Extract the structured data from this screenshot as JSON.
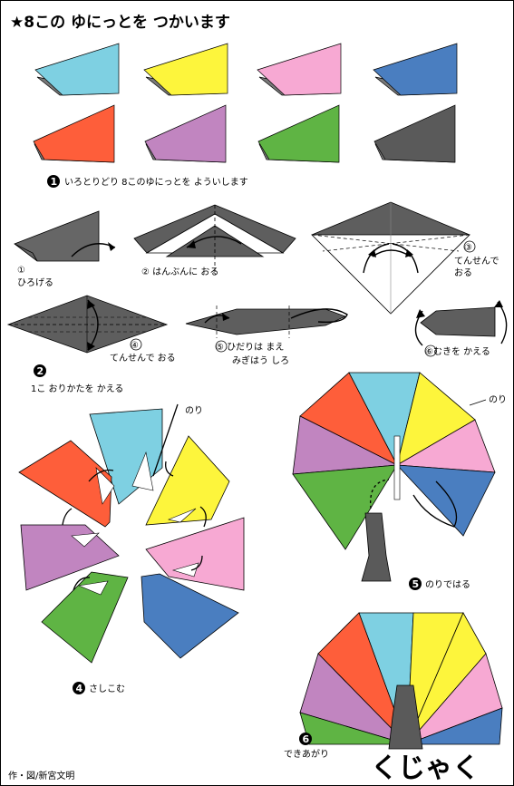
{
  "title": "★8この ゆにっとを つかいます",
  "colors": {
    "cyan": "#7ed0e2",
    "yellow": "#fdf53c",
    "pink": "#f7a9d3",
    "blue": "#4a7ec0",
    "red": "#fe5e3a",
    "purple": "#c185c0",
    "green": "#5fb444",
    "gray": "#5a5a5a"
  },
  "steps": {
    "s1": {
      "no": "1",
      "text": "いろとりどり 8このゆにっとを よういします"
    },
    "s2": {
      "no": "2",
      "text": "1こ おりかたを かえる"
    },
    "s4": {
      "no": "4",
      "text": "さしこむ"
    },
    "s5": {
      "no": "5",
      "text": "のりではる"
    },
    "s6": {
      "no": "6",
      "text": "できあがり"
    }
  },
  "substeps": {
    "a1": "①",
    "a1b": "ひろげる",
    "a2": "② はんぶんに おる",
    "a3": "③",
    "a3b": "てんせんで",
    "a3c": "おる",
    "a4": "④",
    "a4b": "てんせんで おる",
    "a5": "⑤ ひだりは まえ",
    "a5b": "みぎはう しろ",
    "a6": "⑥むきを かえる"
  },
  "glue_label": "のり",
  "glue_label2": "のり",
  "result_title": "くじゃく",
  "credit": "作・図/新宮文明"
}
